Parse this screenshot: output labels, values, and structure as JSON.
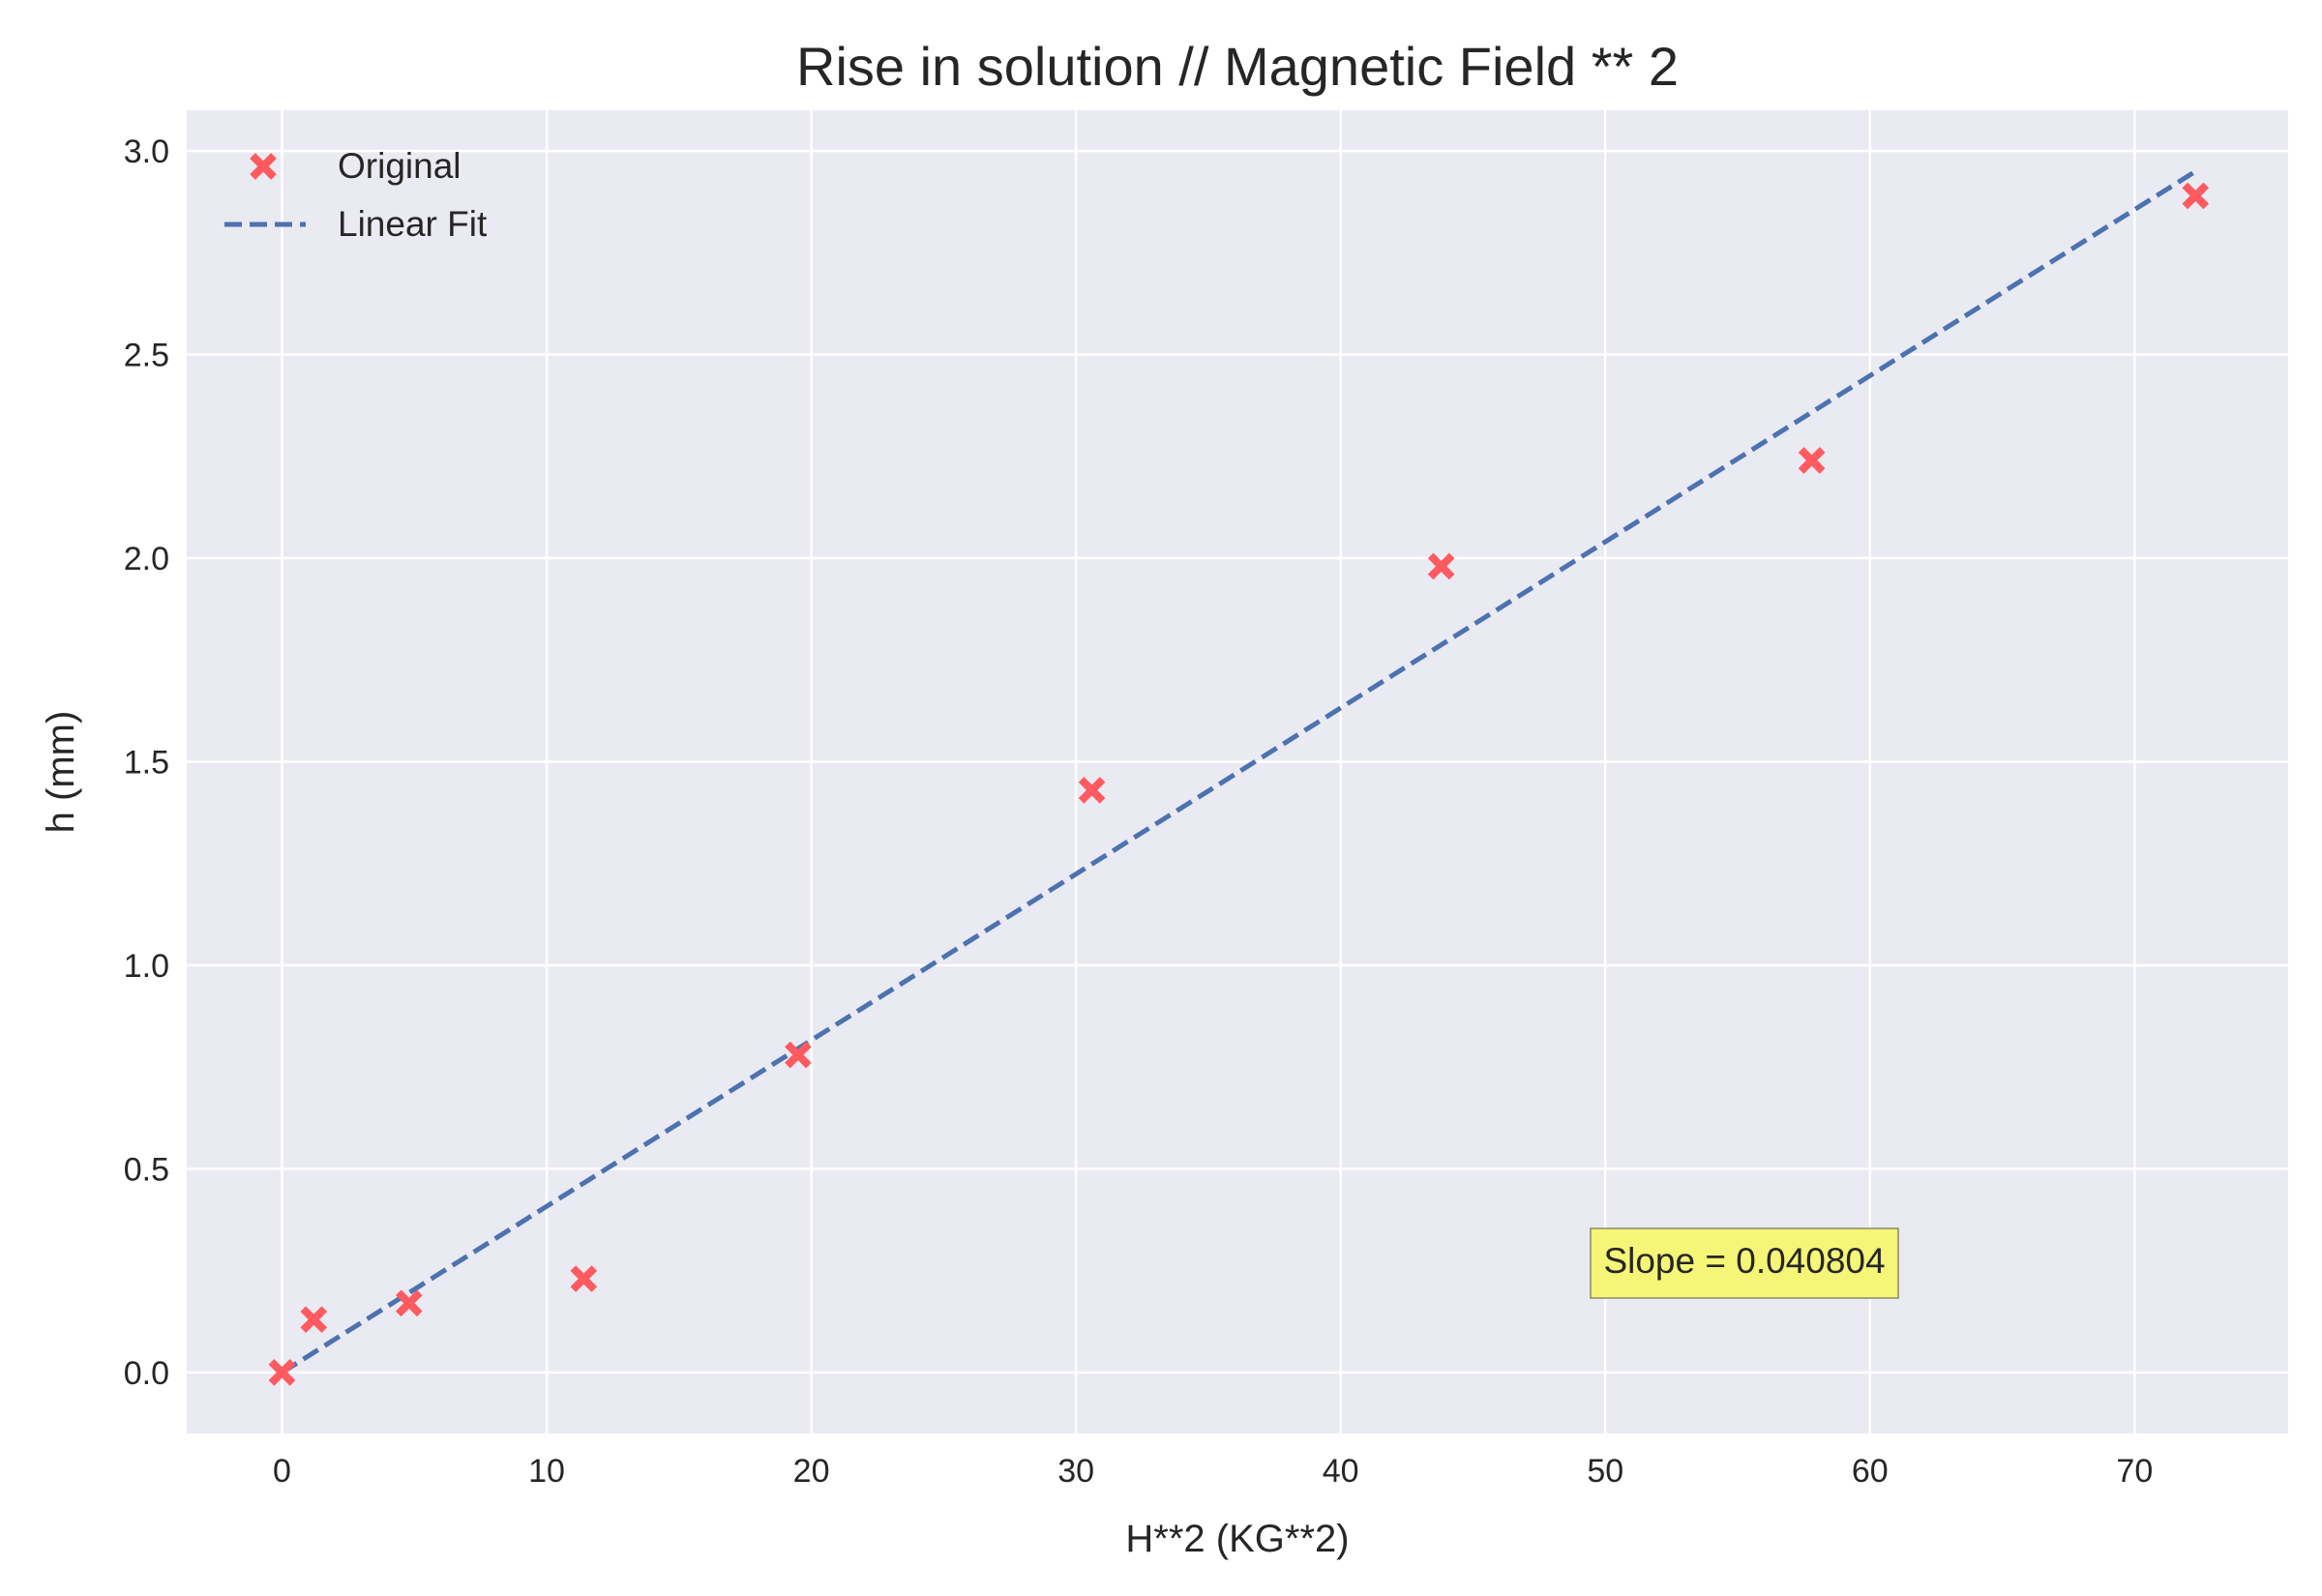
{
  "chart_data": {
    "type": "scatter",
    "title": "Rise in solution // Magnetic Field ** 2",
    "xlabel": "H**2  (KG**2)",
    "ylabel": "h (mm)",
    "xlim": [
      -3.6,
      75.8
    ],
    "ylim": [
      -0.15,
      3.1
    ],
    "xticks": [
      0,
      10,
      20,
      30,
      40,
      50,
      60,
      70
    ],
    "yticks": [
      0.0,
      0.5,
      1.0,
      1.5,
      2.0,
      2.5,
      3.0
    ],
    "xtick_labels": [
      "0",
      "10",
      "20",
      "30",
      "40",
      "50",
      "60",
      "70"
    ],
    "ytick_labels": [
      "0.0",
      "0.5",
      "1.0",
      "1.5",
      "2.0",
      "2.5",
      "3.0"
    ],
    "grid": true,
    "legend_position": "top-left",
    "series": [
      {
        "name": "Original",
        "kind": "scatter",
        "marker": "x",
        "color": "#ff5a5f",
        "x": [
          0,
          1.2,
          4.8,
          11.4,
          19.5,
          30.6,
          43.8,
          57.8,
          72.3
        ],
        "y": [
          0.0,
          0.13,
          0.17,
          0.23,
          0.78,
          1.43,
          1.98,
          2.24,
          2.89
        ]
      },
      {
        "name": "Linear Fit",
        "kind": "line",
        "style": "dashed",
        "color": "#4c72b0",
        "x": [
          0,
          72.3
        ],
        "y": [
          0.0,
          2.95
        ]
      }
    ],
    "annotation": {
      "text": "Slope = 0.040804",
      "x": 49.8,
      "y": 0.27,
      "background": "#f5f577"
    },
    "background_color": "#eaeaf2"
  }
}
